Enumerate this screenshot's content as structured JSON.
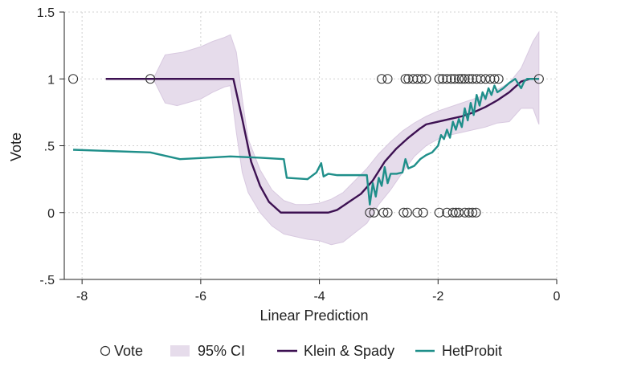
{
  "chart_data": {
    "type": "line",
    "title": "",
    "xlabel": "Linear Prediction",
    "ylabel": "Vote",
    "xlim": [
      -8.3,
      0
    ],
    "ylim": [
      -0.5,
      1.5
    ],
    "x_ticks": [
      {
        "value": -8,
        "label": "-8"
      },
      {
        "value": -6,
        "label": "-6"
      },
      {
        "value": -4,
        "label": "-4"
      },
      {
        "value": -2,
        "label": "-2"
      },
      {
        "value": 0,
        "label": "0"
      }
    ],
    "y_ticks": [
      {
        "value": -0.5,
        "label": "-.5"
      },
      {
        "value": 0,
        "label": "0"
      },
      {
        "value": 0.5,
        "label": ".5"
      },
      {
        "value": 1,
        "label": "1"
      },
      {
        "value": 1.5,
        "label": "1.5"
      }
    ],
    "grid": true,
    "legend_position": "bottom",
    "legend": {
      "vote": "Vote",
      "ci": "95% CI",
      "klein": "Klein & Spady",
      "het": "HetProbit"
    },
    "colors": {
      "klein": "#3d1152",
      "het": "#1f8f8a",
      "ci_fill": "#e6dceb",
      "ci_edge": "#d8c9e0",
      "vote_marker": "#333333",
      "grid": "#d0d0d0",
      "axis": "#222222"
    },
    "series": [
      {
        "name": "Vote",
        "kind": "scatter",
        "points": [
          [
            -8.15,
            1
          ],
          [
            -6.85,
            1
          ],
          [
            -2.95,
            1
          ],
          [
            -2.85,
            1
          ],
          [
            -2.55,
            1
          ],
          [
            -2.5,
            1
          ],
          [
            -2.42,
            1
          ],
          [
            -2.35,
            1
          ],
          [
            -2.28,
            1
          ],
          [
            -2.2,
            1
          ],
          [
            -1.98,
            1
          ],
          [
            -1.92,
            1
          ],
          [
            -1.85,
            1
          ],
          [
            -1.78,
            1
          ],
          [
            -1.72,
            1
          ],
          [
            -1.65,
            1
          ],
          [
            -1.6,
            1
          ],
          [
            -1.55,
            1
          ],
          [
            -1.48,
            1
          ],
          [
            -1.42,
            1
          ],
          [
            -1.35,
            1
          ],
          [
            -1.28,
            1
          ],
          [
            -1.2,
            1
          ],
          [
            -1.12,
            1
          ],
          [
            -1.05,
            1
          ],
          [
            -0.98,
            1
          ],
          [
            -0.3,
            1
          ],
          [
            -3.15,
            0
          ],
          [
            -3.08,
            0
          ],
          [
            -2.92,
            0
          ],
          [
            -2.85,
            0
          ],
          [
            -2.58,
            0
          ],
          [
            -2.52,
            0
          ],
          [
            -2.35,
            0
          ],
          [
            -2.25,
            0
          ],
          [
            -1.98,
            0
          ],
          [
            -1.85,
            0
          ],
          [
            -1.75,
            0
          ],
          [
            -1.7,
            0
          ],
          [
            -1.65,
            0
          ],
          [
            -1.55,
            0
          ],
          [
            -1.48,
            0
          ],
          [
            -1.42,
            0
          ],
          [
            -1.36,
            0
          ]
        ]
      },
      {
        "name": "95% CI",
        "kind": "band",
        "upper": [
          [
            -6.8,
            1.0
          ],
          [
            -6.6,
            1.18
          ],
          [
            -6.3,
            1.2
          ],
          [
            -6.0,
            1.24
          ],
          [
            -5.8,
            1.28
          ],
          [
            -5.6,
            1.31
          ],
          [
            -5.5,
            1.33
          ],
          [
            -5.4,
            1.2
          ],
          [
            -5.3,
            0.85
          ],
          [
            -5.2,
            0.55
          ],
          [
            -5.0,
            0.32
          ],
          [
            -4.8,
            0.17
          ],
          [
            -4.6,
            0.09
          ],
          [
            -4.4,
            0.06
          ],
          [
            -4.2,
            0.06
          ],
          [
            -4.0,
            0.07
          ],
          [
            -3.8,
            0.1
          ],
          [
            -3.6,
            0.15
          ],
          [
            -3.4,
            0.24
          ],
          [
            -3.2,
            0.33
          ],
          [
            -3.0,
            0.44
          ],
          [
            -2.8,
            0.53
          ],
          [
            -2.6,
            0.61
          ],
          [
            -2.4,
            0.67
          ],
          [
            -2.2,
            0.72
          ],
          [
            -2.0,
            0.76
          ],
          [
            -1.8,
            0.79
          ],
          [
            -1.6,
            0.82
          ],
          [
            -1.4,
            0.85
          ],
          [
            -1.2,
            0.88
          ],
          [
            -1.0,
            0.92
          ],
          [
            -0.8,
            0.97
          ],
          [
            -0.6,
            1.08
          ],
          [
            -0.4,
            1.28
          ],
          [
            -0.3,
            1.35
          ]
        ],
        "lower": [
          [
            -6.8,
            1.0
          ],
          [
            -6.6,
            0.82
          ],
          [
            -6.4,
            0.8
          ],
          [
            -6.0,
            0.85
          ],
          [
            -5.8,
            0.9
          ],
          [
            -5.6,
            0.94
          ],
          [
            -5.5,
            0.95
          ],
          [
            -5.4,
            0.6
          ],
          [
            -5.3,
            0.3
          ],
          [
            -5.2,
            0.15
          ],
          [
            -5.0,
            0.0
          ],
          [
            -4.8,
            -0.1
          ],
          [
            -4.6,
            -0.16
          ],
          [
            -4.4,
            -0.18
          ],
          [
            -4.2,
            -0.2
          ],
          [
            -4.0,
            -0.21
          ],
          [
            -3.8,
            -0.24
          ],
          [
            -3.6,
            -0.22
          ],
          [
            -3.4,
            -0.15
          ],
          [
            -3.2,
            -0.08
          ],
          [
            -3.0,
            0.06
          ],
          [
            -2.8,
            0.17
          ],
          [
            -2.6,
            0.3
          ],
          [
            -2.4,
            0.42
          ],
          [
            -2.2,
            0.5
          ],
          [
            -2.0,
            0.55
          ],
          [
            -1.8,
            0.58
          ],
          [
            -1.6,
            0.6
          ],
          [
            -1.4,
            0.62
          ],
          [
            -1.2,
            0.64
          ],
          [
            -1.0,
            0.67
          ],
          [
            -0.8,
            0.68
          ],
          [
            -0.6,
            0.78
          ],
          [
            -0.4,
            0.78
          ],
          [
            -0.3,
            0.66
          ]
        ]
      },
      {
        "name": "Klein & Spady",
        "kind": "line",
        "points": [
          [
            -7.6,
            1.0
          ],
          [
            -5.45,
            1.0
          ],
          [
            -5.3,
            0.7
          ],
          [
            -5.15,
            0.38
          ],
          [
            -5.0,
            0.2
          ],
          [
            -4.85,
            0.08
          ],
          [
            -4.65,
            0.0
          ],
          [
            -3.85,
            0.0
          ],
          [
            -3.7,
            0.02
          ],
          [
            -3.5,
            0.08
          ],
          [
            -3.3,
            0.14
          ],
          [
            -3.1,
            0.24
          ],
          [
            -2.9,
            0.38
          ],
          [
            -2.7,
            0.48
          ],
          [
            -2.5,
            0.56
          ],
          [
            -2.3,
            0.63
          ],
          [
            -2.2,
            0.66
          ],
          [
            -2.0,
            0.68
          ],
          [
            -1.8,
            0.7
          ],
          [
            -1.6,
            0.72
          ],
          [
            -1.4,
            0.75
          ],
          [
            -1.2,
            0.79
          ],
          [
            -1.0,
            0.84
          ],
          [
            -0.8,
            0.9
          ],
          [
            -0.6,
            0.98
          ],
          [
            -0.45,
            1.0
          ],
          [
            -0.3,
            1.0
          ]
        ]
      },
      {
        "name": "HetProbit",
        "kind": "line",
        "points": [
          [
            -8.15,
            0.47
          ],
          [
            -6.85,
            0.45
          ],
          [
            -6.35,
            0.4
          ],
          [
            -5.9,
            0.41
          ],
          [
            -5.5,
            0.42
          ],
          [
            -5.0,
            0.41
          ],
          [
            -4.6,
            0.4
          ],
          [
            -4.55,
            0.26
          ],
          [
            -4.2,
            0.25
          ],
          [
            -4.05,
            0.3
          ],
          [
            -3.97,
            0.37
          ],
          [
            -3.93,
            0.27
          ],
          [
            -3.85,
            0.29
          ],
          [
            -3.7,
            0.28
          ],
          [
            -3.4,
            0.28
          ],
          [
            -3.2,
            0.28
          ],
          [
            -3.15,
            0.06
          ],
          [
            -3.1,
            0.22
          ],
          [
            -3.05,
            0.12
          ],
          [
            -3.0,
            0.26
          ],
          [
            -2.95,
            0.2
          ],
          [
            -2.9,
            0.34
          ],
          [
            -2.85,
            0.22
          ],
          [
            -2.8,
            0.29
          ],
          [
            -2.7,
            0.29
          ],
          [
            -2.6,
            0.3
          ],
          [
            -2.55,
            0.4
          ],
          [
            -2.5,
            0.33
          ],
          [
            -2.4,
            0.35
          ],
          [
            -2.3,
            0.4
          ],
          [
            -2.2,
            0.43
          ],
          [
            -2.1,
            0.45
          ],
          [
            -2.0,
            0.5
          ],
          [
            -1.95,
            0.58
          ],
          [
            -1.9,
            0.55
          ],
          [
            -1.85,
            0.62
          ],
          [
            -1.8,
            0.56
          ],
          [
            -1.75,
            0.68
          ],
          [
            -1.7,
            0.62
          ],
          [
            -1.65,
            0.7
          ],
          [
            -1.6,
            0.64
          ],
          [
            -1.55,
            0.78
          ],
          [
            -1.5,
            0.69
          ],
          [
            -1.45,
            0.82
          ],
          [
            -1.4,
            0.73
          ],
          [
            -1.35,
            0.88
          ],
          [
            -1.3,
            0.8
          ],
          [
            -1.25,
            0.9
          ],
          [
            -1.2,
            0.85
          ],
          [
            -1.15,
            0.93
          ],
          [
            -1.1,
            0.88
          ],
          [
            -1.05,
            0.95
          ],
          [
            -1.0,
            0.9
          ],
          [
            -0.9,
            0.93
          ],
          [
            -0.8,
            0.97
          ],
          [
            -0.7,
            1.0
          ],
          [
            -0.6,
            0.93
          ],
          [
            -0.55,
            0.98
          ],
          [
            -0.5,
            1.0
          ],
          [
            -0.4,
            1.0
          ],
          [
            -0.3,
            1.0
          ]
        ]
      }
    ]
  }
}
